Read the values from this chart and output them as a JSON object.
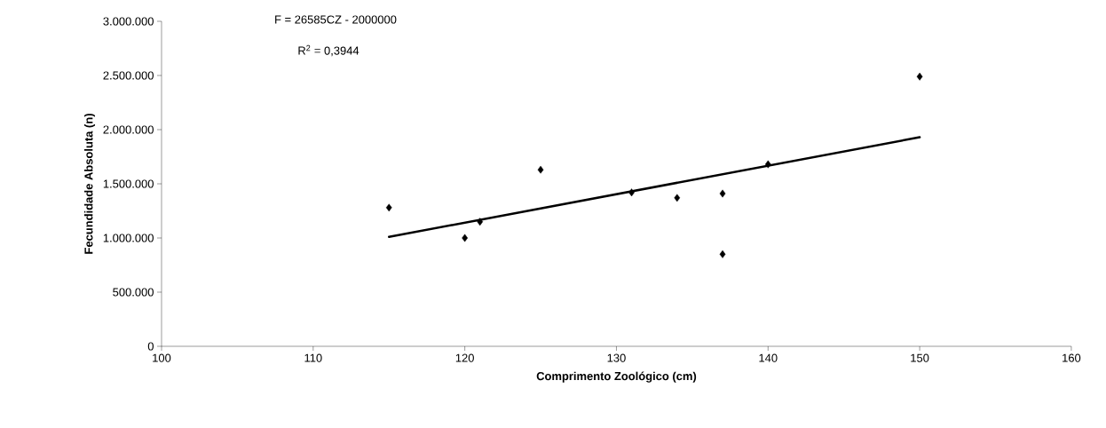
{
  "chart_data": {
    "type": "scatter",
    "xlabel": "Comprimento Zoológico  (cm)",
    "ylabel": "Fecundidade Absoluta (n)",
    "xlim": [
      100,
      160
    ],
    "xticks": [
      100,
      110,
      120,
      130,
      140,
      150,
      160
    ],
    "ylim": [
      0,
      3000000
    ],
    "yticks": [
      {
        "value": 0,
        "label": "0"
      },
      {
        "value": 500000,
        "label": "500.000"
      },
      {
        "value": 1000000,
        "label": "1.000.000"
      },
      {
        "value": 1500000,
        "label": "1.500.000"
      },
      {
        "value": 2000000,
        "label": "2.000.000"
      },
      {
        "value": 2500000,
        "label": "2.500.000"
      },
      {
        "value": 3000000,
        "label": "3.000.000"
      }
    ],
    "grid": false,
    "marker": "diamond",
    "series": [
      {
        "color": "#000000",
        "x": [
          115,
          120,
          121,
          125,
          131,
          134,
          137,
          137,
          140,
          150
        ],
        "values": [
          1280000,
          1000000,
          1150000,
          1630000,
          1420000,
          1370000,
          1410000,
          850000,
          1680000,
          2490000
        ]
      },
      {
        "type": "line",
        "marker": "none",
        "color": "#000000",
        "x": [
          115,
          150
        ],
        "values": [
          1010000,
          1930000
        ]
      }
    ],
    "annotations": [
      "F = 26585CZ - 2000000",
      "R$^{2}$ = 0,3944"
    ]
  }
}
